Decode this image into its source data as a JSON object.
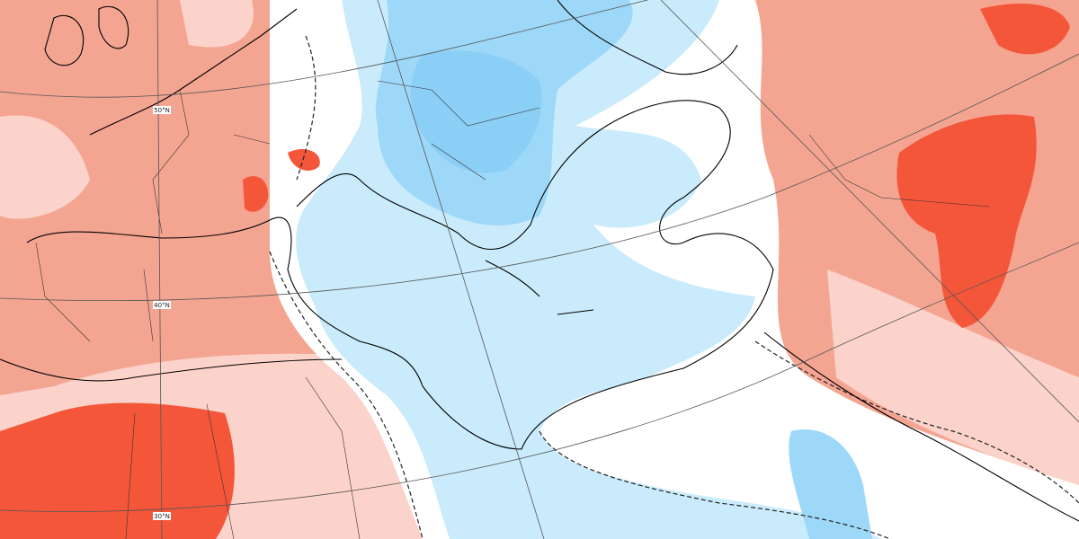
{
  "map": {
    "latitude_labels": [
      "50°N",
      "40°N",
      "30°N"
    ]
  }
}
